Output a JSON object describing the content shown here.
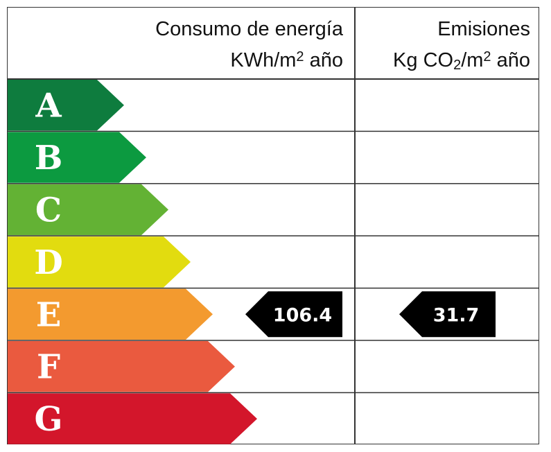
{
  "header": {
    "energy_title": "Consumo de energía",
    "energy_unit_prefix": "KWh/m",
    "energy_unit_exp": "2",
    "energy_unit_suffix": " año",
    "emissions_title": "Emisiones",
    "emissions_unit_prefix": "Kg CO",
    "emissions_unit_sub": "2",
    "emissions_unit_mid": "/m",
    "emissions_unit_exp": "2",
    "emissions_unit_suffix": " año"
  },
  "ratings": [
    {
      "letter": "A",
      "color": "#0e7c3e"
    },
    {
      "letter": "B",
      "color": "#0c9a40"
    },
    {
      "letter": "C",
      "color": "#63b234"
    },
    {
      "letter": "D",
      "color": "#e2dc0f"
    },
    {
      "letter": "E",
      "color": "#f39a2f"
    },
    {
      "letter": "F",
      "color": "#ea5a3f"
    },
    {
      "letter": "G",
      "color": "#d3162b"
    }
  ],
  "energy_rating": {
    "letter": "E",
    "value": "106.4"
  },
  "emissions_rating": {
    "letter": "E",
    "value": "31.7"
  },
  "marker_color": "#000000"
}
